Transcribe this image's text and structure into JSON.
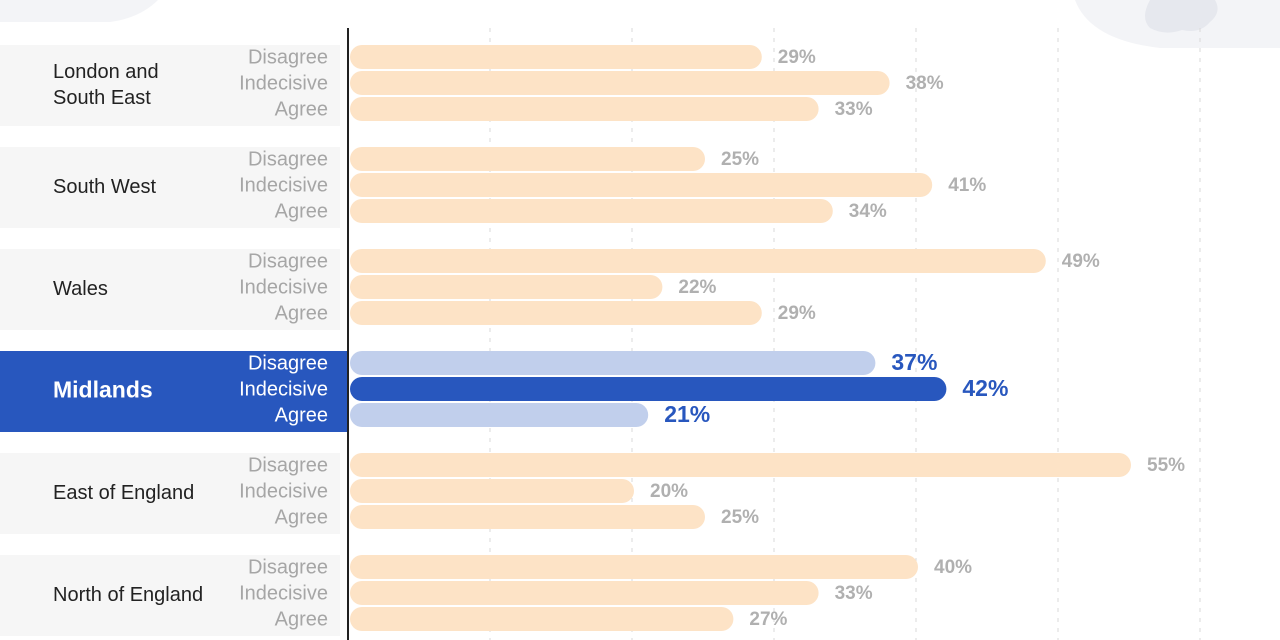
{
  "chart_data": {
    "type": "bar",
    "orientation": "horizontal",
    "title": "",
    "xlabel": "",
    "ylabel": "",
    "xlim": [
      0,
      60
    ],
    "grid": true,
    "highlight_group": "Midlands",
    "categories": [
      "Disagree",
      "Indecisive",
      "Agree"
    ],
    "value_suffix": "%",
    "groups": [
      {
        "name": "London and South East",
        "label_lines": [
          "London and",
          "South East"
        ],
        "values": [
          29,
          38,
          33
        ]
      },
      {
        "name": "South West",
        "label_lines": [
          "South West"
        ],
        "values": [
          25,
          41,
          34
        ]
      },
      {
        "name": "Wales",
        "label_lines": [
          "Wales"
        ],
        "values": [
          49,
          22,
          29
        ]
      },
      {
        "name": "Midlands",
        "label_lines": [
          "Midlands"
        ],
        "values": [
          37,
          42,
          21
        ]
      },
      {
        "name": "East of England",
        "label_lines": [
          "East of England"
        ],
        "values": [
          55,
          20,
          25
        ]
      },
      {
        "name": "North of England",
        "label_lines": [
          "North of England"
        ],
        "values": [
          40,
          33,
          27
        ]
      }
    ],
    "colors": {
      "bar": "#fde3c6",
      "highlight_bar": "#2857be",
      "highlight_bar_light": "#c1cfec",
      "highlight_bg": "#2857be"
    }
  }
}
